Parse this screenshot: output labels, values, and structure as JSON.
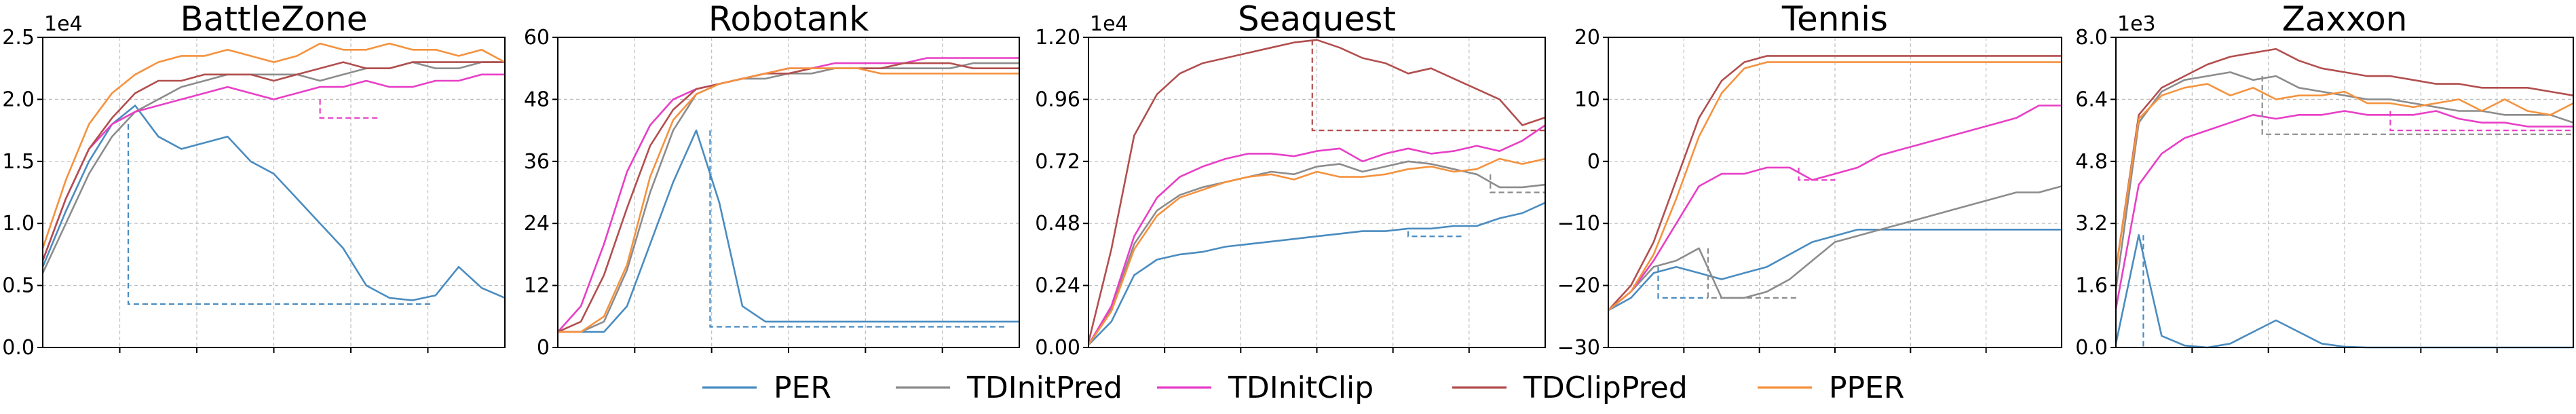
{
  "colors": {
    "PER": "#4a8cc0",
    "TDInitPred": "#8c8c8c",
    "TDInitClip": "#e83fc6",
    "TDClipPred": "#b24e4e",
    "PPER": "#f5923e"
  },
  "legend": {
    "placement": "bottom-center",
    "items": [
      "PER",
      "TDInitPred",
      "TDInitClip",
      "TDClipPred",
      "PPER"
    ]
  },
  "chart_data": [
    {
      "type": "line",
      "title": "BattleZone",
      "multiplier": "1e4",
      "ylim": [
        0,
        25000
      ],
      "yticks": [
        0,
        5000,
        10000,
        15000,
        20000,
        25000
      ],
      "ytick_labels": [
        "0.0",
        "0.5",
        "1.0",
        "1.5",
        "2.0",
        "2.5"
      ],
      "xlim": [
        0,
        1
      ],
      "grid": true,
      "x": [
        0,
        0.05,
        0.1,
        0.15,
        0.2,
        0.25,
        0.3,
        0.35,
        0.4,
        0.45,
        0.5,
        0.55,
        0.6,
        0.65,
        0.7,
        0.75,
        0.8,
        0.85,
        0.9,
        0.95,
        1.0
      ],
      "series": [
        {
          "name": "PER",
          "values": [
            6500,
            11000,
            15000,
            18000,
            19500,
            17000,
            16000,
            16500,
            17000,
            15000,
            14000,
            12000,
            10000,
            8000,
            5000,
            4000,
            3800,
            4200,
            6500,
            4800,
            4000
          ]
        },
        {
          "name": "TDInitPred",
          "values": [
            6000,
            10000,
            14000,
            17000,
            19000,
            20000,
            21000,
            21500,
            22000,
            22000,
            22000,
            22000,
            21500,
            22000,
            22500,
            22500,
            23000,
            22500,
            22500,
            23000,
            23000
          ]
        },
        {
          "name": "TDInitClip",
          "values": [
            7000,
            12000,
            16000,
            18000,
            19000,
            19500,
            20000,
            20500,
            21000,
            20500,
            20000,
            20500,
            21000,
            21000,
            21500,
            21000,
            21000,
            21500,
            21500,
            22000,
            22000
          ]
        },
        {
          "name": "TDClipPred",
          "values": [
            7000,
            12000,
            16000,
            18500,
            20500,
            21500,
            21500,
            22000,
            22000,
            22000,
            21500,
            22000,
            22500,
            23000,
            22500,
            22500,
            23000,
            23000,
            23000,
            23000,
            23000
          ]
        },
        {
          "name": "PPER",
          "values": [
            8000,
            13500,
            18000,
            20500,
            22000,
            23000,
            23500,
            23500,
            24000,
            23500,
            23000,
            23500,
            24500,
            24000,
            24000,
            24500,
            24000,
            24000,
            23500,
            24000,
            23000
          ]
        }
      ],
      "drops": [
        {
          "series": "PER",
          "x": [
            0.185,
            0.84
          ],
          "y": [
            18000,
            3500
          ]
        },
        {
          "series": "TDInitClip",
          "x": [
            0.6,
            0.73
          ],
          "y": [
            20000,
            18500
          ]
        }
      ]
    },
    {
      "type": "line",
      "title": "Robotank",
      "multiplier": "",
      "ylim": [
        0,
        60
      ],
      "yticks": [
        0,
        12,
        24,
        36,
        48,
        60
      ],
      "ytick_labels": [
        "0",
        "12",
        "24",
        "36",
        "48",
        "60"
      ],
      "xlim": [
        0,
        1
      ],
      "grid": true,
      "x": [
        0,
        0.05,
        0.1,
        0.15,
        0.2,
        0.25,
        0.3,
        0.35,
        0.4,
        0.45,
        0.5,
        0.55,
        0.6,
        0.65,
        0.7,
        0.75,
        0.8,
        0.85,
        0.9,
        0.95,
        1.0
      ],
      "series": [
        {
          "name": "PER",
          "values": [
            3,
            3,
            3,
            8,
            20,
            32,
            42,
            28,
            8,
            5,
            5,
            5,
            5,
            5,
            5,
            5,
            5,
            5,
            5,
            5,
            5
          ]
        },
        {
          "name": "TDInitPred",
          "values": [
            3,
            3,
            5,
            15,
            30,
            42,
            49,
            51,
            52,
            52,
            53,
            53,
            54,
            54,
            54,
            54,
            54,
            54,
            55,
            55,
            55
          ]
        },
        {
          "name": "TDInitClip",
          "values": [
            3,
            8,
            20,
            34,
            43,
            48,
            50,
            51,
            52,
            53,
            54,
            54,
            55,
            55,
            55,
            55,
            56,
            56,
            56,
            56,
            56
          ]
        },
        {
          "name": "TDClipPred",
          "values": [
            3,
            5,
            14,
            27,
            39,
            46,
            50,
            51,
            52,
            53,
            53,
            54,
            54,
            54,
            54,
            55,
            55,
            55,
            54,
            54,
            54
          ]
        },
        {
          "name": "PPER",
          "values": [
            3,
            3,
            6,
            16,
            33,
            44,
            49,
            51,
            52,
            53,
            54,
            54,
            54,
            54,
            53,
            53,
            53,
            53,
            53,
            53,
            53
          ]
        }
      ],
      "drops": [
        {
          "series": "PER",
          "x": [
            0.33,
            0.97
          ],
          "y": [
            42,
            4
          ]
        }
      ]
    },
    {
      "type": "line",
      "title": "Seaquest",
      "multiplier": "1e4",
      "ylim": [
        0,
        12000
      ],
      "yticks": [
        0,
        2400,
        4800,
        7200,
        9600,
        12000
      ],
      "ytick_labels": [
        "0.00",
        "0.24",
        "0.48",
        "0.72",
        "0.96",
        "1.20"
      ],
      "xlim": [
        0,
        1
      ],
      "grid": true,
      "x": [
        0,
        0.05,
        0.1,
        0.15,
        0.2,
        0.25,
        0.3,
        0.35,
        0.4,
        0.45,
        0.5,
        0.55,
        0.6,
        0.65,
        0.7,
        0.75,
        0.8,
        0.85,
        0.9,
        0.95,
        1.0
      ],
      "series": [
        {
          "name": "PER",
          "values": [
            100,
            1000,
            2800,
            3400,
            3600,
            3700,
            3900,
            4000,
            4100,
            4200,
            4300,
            4400,
            4500,
            4500,
            4600,
            4600,
            4700,
            4700,
            5000,
            5200,
            5600
          ]
        },
        {
          "name": "TDInitPred",
          "values": [
            100,
            1500,
            4000,
            5300,
            5900,
            6200,
            6400,
            6600,
            6800,
            6700,
            7000,
            7100,
            6800,
            7000,
            7200,
            7100,
            6900,
            6700,
            6200,
            6200,
            6300
          ]
        },
        {
          "name": "TDInitClip",
          "values": [
            100,
            1600,
            4300,
            5800,
            6600,
            7000,
            7300,
            7500,
            7500,
            7400,
            7600,
            7700,
            7200,
            7500,
            7700,
            7500,
            7600,
            7800,
            7600,
            8000,
            8600
          ]
        },
        {
          "name": "TDClipPred",
          "values": [
            200,
            3800,
            8200,
            9800,
            10600,
            11000,
            11200,
            11400,
            11600,
            11800,
            11900,
            11600,
            11200,
            11000,
            10600,
            10800,
            10400,
            10000,
            9600,
            8600,
            8900
          ]
        },
        {
          "name": "PPER",
          "values": [
            100,
            1400,
            3800,
            5100,
            5800,
            6100,
            6400,
            6600,
            6700,
            6500,
            6800,
            6600,
            6600,
            6700,
            6900,
            7000,
            6800,
            6900,
            7300,
            7100,
            7300
          ]
        }
      ],
      "drops": [
        {
          "series": "TDClipPred",
          "x": [
            0.49,
            1.0
          ],
          "y": [
            11900,
            8400
          ]
        },
        {
          "series": "TDInitPred",
          "x": [
            0.88,
            1.0
          ],
          "y": [
            6700,
            6000
          ]
        },
        {
          "series": "PER",
          "x": [
            0.7,
            0.82
          ],
          "y": [
            4500,
            4300
          ]
        }
      ]
    },
    {
      "type": "line",
      "title": "Tennis",
      "multiplier": "",
      "ylim": [
        -30,
        20
      ],
      "yticks": [
        -30,
        -20,
        -10,
        0,
        10,
        20
      ],
      "ytick_labels": [
        "−30",
        "−20",
        "−10",
        "0",
        "10",
        "20"
      ],
      "xlim": [
        0,
        1
      ],
      "grid": true,
      "x": [
        0,
        0.05,
        0.1,
        0.15,
        0.2,
        0.25,
        0.3,
        0.35,
        0.4,
        0.45,
        0.5,
        0.55,
        0.6,
        0.65,
        0.7,
        0.75,
        0.8,
        0.85,
        0.9,
        0.95,
        1.0
      ],
      "series": [
        {
          "name": "PER",
          "values": [
            -24,
            -22,
            -18,
            -17,
            -18,
            -19,
            -18,
            -17,
            -15,
            -13,
            -12,
            -11,
            -11,
            -11,
            -11,
            -11,
            -11,
            -11,
            -11,
            -11,
            -11
          ]
        },
        {
          "name": "TDInitPred",
          "values": [
            -24,
            -21,
            -17,
            -16,
            -14,
            -22,
            -22,
            -21,
            -19,
            -16,
            -13,
            -12,
            -11,
            -10,
            -9,
            -8,
            -7,
            -6,
            -5,
            -5,
            -4
          ]
        },
        {
          "name": "TDInitClip",
          "values": [
            -24,
            -21,
            -16,
            -10,
            -4,
            -2,
            -2,
            -1,
            -1,
            -3,
            -2,
            -1,
            1,
            2,
            3,
            4,
            5,
            6,
            7,
            9,
            9
          ]
        },
        {
          "name": "TDClipPred",
          "values": [
            -24,
            -20,
            -13,
            -3,
            7,
            13,
            16,
            17,
            17,
            17,
            17,
            17,
            17,
            17,
            17,
            17,
            17,
            17,
            17,
            17,
            17
          ]
        },
        {
          "name": "PPER",
          "values": [
            -24,
            -21,
            -15,
            -6,
            4,
            11,
            15,
            16,
            16,
            16,
            16,
            16,
            16,
            16,
            16,
            16,
            16,
            16,
            16,
            16,
            16
          ]
        }
      ],
      "drops": [
        {
          "series": "PER",
          "x": [
            0.11,
            0.22
          ],
          "y": [
            -17,
            -22
          ]
        },
        {
          "series": "TDInitPred",
          "x": [
            0.22,
            0.42
          ],
          "y": [
            -14,
            -22
          ]
        },
        {
          "series": "TDInitClip",
          "x": [
            0.42,
            0.5
          ],
          "y": [
            -1,
            -3
          ]
        }
      ]
    },
    {
      "type": "line",
      "title": "Zaxxon",
      "multiplier": "1e3",
      "ylim": [
        0,
        8000
      ],
      "yticks": [
        0,
        1600,
        3200,
        4800,
        6400,
        8000
      ],
      "ytick_labels": [
        "0.0",
        "1.6",
        "3.2",
        "4.8",
        "6.4",
        "8.0"
      ],
      "xlim": [
        0,
        1
      ],
      "grid": true,
      "x": [
        0,
        0.05,
        0.1,
        0.15,
        0.2,
        0.25,
        0.3,
        0.35,
        0.4,
        0.45,
        0.5,
        0.55,
        0.6,
        0.65,
        0.7,
        0.75,
        0.8,
        0.85,
        0.9,
        0.95,
        1.0
      ],
      "series": [
        {
          "name": "PER",
          "values": [
            100,
            2900,
            300,
            50,
            0,
            100,
            400,
            700,
            400,
            100,
            20,
            0,
            0,
            0,
            0,
            0,
            0,
            0,
            0,
            0,
            0
          ]
        },
        {
          "name": "TDInitPred",
          "values": [
            1500,
            5800,
            6600,
            6900,
            7000,
            7100,
            6900,
            7000,
            6700,
            6600,
            6500,
            6400,
            6400,
            6300,
            6200,
            6100,
            6100,
            6000,
            6000,
            6000,
            5800
          ]
        },
        {
          "name": "TDInitClip",
          "values": [
            1000,
            4200,
            5000,
            5400,
            5600,
            5800,
            6000,
            5900,
            6000,
            6000,
            6100,
            6000,
            6000,
            6000,
            6100,
            5900,
            5800,
            5800,
            5700,
            5700,
            5700
          ]
        },
        {
          "name": "TDClipPred",
          "values": [
            2000,
            6000,
            6700,
            7000,
            7300,
            7500,
            7600,
            7700,
            7400,
            7200,
            7100,
            7000,
            7000,
            6900,
            6800,
            6800,
            6700,
            6700,
            6700,
            6600,
            6500
          ]
        },
        {
          "name": "PPER",
          "values": [
            2000,
            5900,
            6500,
            6700,
            6800,
            6500,
            6700,
            6400,
            6500,
            6500,
            6600,
            6300,
            6300,
            6200,
            6300,
            6400,
            6100,
            6400,
            6100,
            6000,
            6300
          ]
        }
      ],
      "drops": [
        {
          "series": "PER",
          "x": [
            0.06,
            0.06
          ],
          "y": [
            2900,
            0
          ]
        },
        {
          "series": "TDInitPred",
          "x": [
            0.32,
            1.0
          ],
          "y": [
            7000,
            5500
          ]
        },
        {
          "series": "TDInitClip",
          "x": [
            0.6,
            1.0
          ],
          "y": [
            6100,
            5600
          ]
        }
      ]
    }
  ]
}
